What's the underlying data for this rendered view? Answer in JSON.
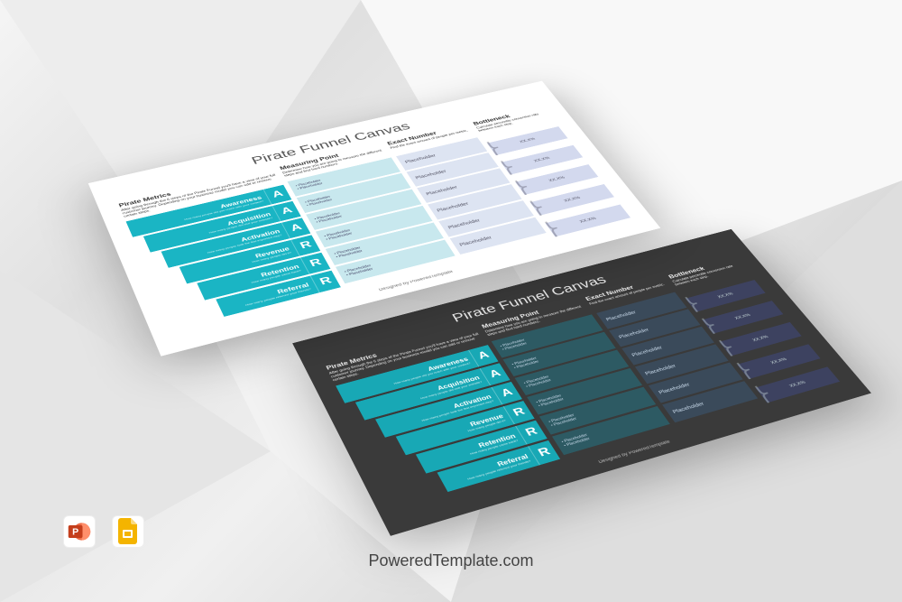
{
  "title": "Pirate Funnel Canvas",
  "columns": {
    "metrics": {
      "header": "Pirate Metrics",
      "desc": "After going through the 6 steps of the Pirate Funnel you'll have a view of your full customer journey. Depending on your business model you can add or remove certain steps."
    },
    "measuring": {
      "header": "Measuring Point",
      "desc": "Determine how you are going to measure the different steps and find hard numbers."
    },
    "exact": {
      "header": "Exact Number",
      "desc": "Find the exact amount of people per metric."
    },
    "bottleneck": {
      "header": "Bottleneck",
      "desc": "Calculate percentile conversion rate between each step."
    }
  },
  "metrics": [
    {
      "label": "Awareness",
      "letter": "A",
      "sub": "How many people did you reach with your content?"
    },
    {
      "label": "Acquisition",
      "letter": "A",
      "sub": "How many people did visit your website?"
    },
    {
      "label": "Activation",
      "letter": "A",
      "sub": "How many people took the first important step?"
    },
    {
      "label": "Revenue",
      "letter": "R",
      "sub": "How many people did it?"
    },
    {
      "label": "Retention",
      "letter": "R",
      "sub": "How many people came back?"
    },
    {
      "label": "Referral",
      "letter": "R",
      "sub": "How many people referred your friends?"
    }
  ],
  "placeholder": "Placeholder",
  "percent": "XX.X%",
  "footer": "Designed by PoweredTemplate",
  "brand": "PoweredTemplate.com",
  "light": {
    "bg": "#ffffff",
    "title_color": "#555555",
    "text_color": "#555555",
    "funnel_colors": [
      "#1ab5c4",
      "#1ab5c4",
      "#1ab5c4",
      "#1ab5c4",
      "#1ab5c4",
      "#1ab5c4"
    ],
    "funnel_widths": [
      100,
      94,
      88,
      82,
      76,
      70
    ],
    "measuring_bg": "#c8e8ee",
    "exact_bg": "#dde4f2",
    "bottleneck_bg": "#d3d9ee"
  },
  "dark": {
    "bg": "#3a3a3a",
    "title_color": "#eeeeee",
    "text_color": "#dddddd",
    "funnel_colors": [
      "#18a8b5",
      "#18a8b5",
      "#18a8b5",
      "#18a8b5",
      "#18a8b5",
      "#18a8b5"
    ],
    "funnel_widths": [
      100,
      94,
      88,
      82,
      76,
      70
    ],
    "measuring_bg": "#2d5a63",
    "exact_bg": "#3a4a5a",
    "bottleneck_bg": "#3d4260"
  },
  "icons": {
    "powerpoint": {
      "bg": "#d24726",
      "letter": "P"
    },
    "slides": {
      "bg": "#f4b400",
      "glyph": "▭"
    }
  }
}
